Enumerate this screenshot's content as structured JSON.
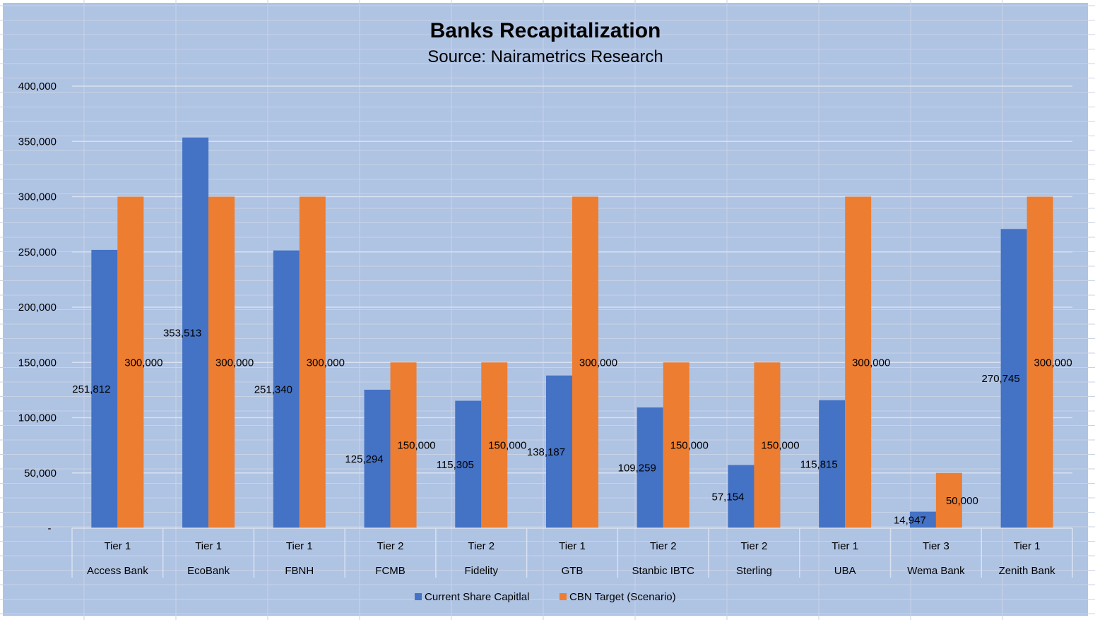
{
  "chart_data": {
    "type": "bar",
    "title": "Banks Recapitalization",
    "subtitle": "Source: Nairametrics Research",
    "categories": [
      "Access Bank",
      "EcoBank",
      "FBNH",
      "FCMB",
      "Fidelity",
      "GTB",
      "Stanbic IBTC",
      "Sterling",
      "UBA",
      "Wema Bank",
      "Zenith Bank"
    ],
    "category_groups": [
      "Tier 1",
      "Tier 1",
      "Tier 1",
      "Tier 2",
      "Tier 2",
      "Tier 1",
      "Tier 2",
      "Tier 2",
      "Tier 1",
      "Tier 3",
      "Tier 1"
    ],
    "series": [
      {
        "name": "Current Share Capitlal",
        "color": "#4472c4",
        "values": [
          251812,
          353513,
          251340,
          125294,
          115305,
          138187,
          109259,
          57154,
          115815,
          14947,
          270745
        ],
        "value_labels": [
          "251,812",
          "353,513",
          "251,340",
          "125,294",
          "115,305",
          "138,187",
          "109,259",
          "57,154",
          "115,815",
          "14,947",
          "270,745"
        ]
      },
      {
        "name": "CBN Target (Scenario)",
        "color": "#ed7d31",
        "values": [
          300000,
          300000,
          300000,
          150000,
          150000,
          300000,
          150000,
          150000,
          300000,
          50000,
          300000
        ],
        "value_labels": [
          "300,000",
          "300,000",
          "300,000",
          "150,000",
          "150,000",
          "300,000",
          "150,000",
          "150,000",
          "300,000",
          "50,000",
          "300,000"
        ]
      }
    ],
    "ylim": [
      0,
      400000
    ],
    "y_ticks": [
      0,
      50000,
      100000,
      150000,
      200000,
      250000,
      300000,
      350000,
      400000
    ],
    "y_tick_labels": [
      "-",
      "50,000",
      "100,000",
      "150,000",
      "200,000",
      "250,000",
      "300,000",
      "350,000",
      "400,000"
    ],
    "grid": true,
    "legend_position": "bottom",
    "background_color": "#afc3e3"
  }
}
